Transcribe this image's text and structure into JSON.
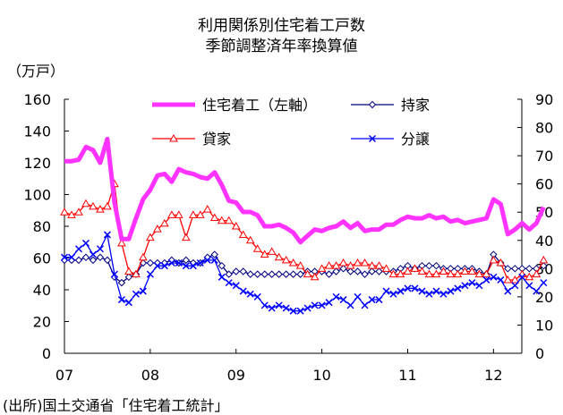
{
  "chart_data": {
    "type": "line",
    "title": "利用関係別住宅着工戸数",
    "subtitle": "季節調整済年率換算値",
    "unit_label": "（万戸）",
    "source": "(出所)国土交通省「住宅着工統計」",
    "x_tick_labels": [
      "07",
      "08",
      "09",
      "10",
      "11",
      "12"
    ],
    "x_range": [
      2007.0,
      2012.33
    ],
    "left_axis": {
      "ylim": [
        0,
        160
      ],
      "ticks": [
        "0",
        "20",
        "40",
        "60",
        "80",
        "100",
        "120",
        "140",
        "160"
      ]
    },
    "right_axis": {
      "ylim": [
        0,
        90
      ],
      "ticks": [
        "0",
        "10",
        "20",
        "30",
        "40",
        "50",
        "60",
        "70",
        "80",
        "90"
      ]
    },
    "grid": false,
    "legend": "top, inside plot, two columns",
    "x_start": 2007.0,
    "x_step_months": 1,
    "series": [
      {
        "name": "住宅着工（左軸）",
        "axis": "left",
        "color": "#ff33ff",
        "marker": "none",
        "values": [
          121,
          121,
          122,
          130,
          128,
          120,
          135,
          95,
          72,
          72,
          85,
          97,
          103,
          112,
          113,
          108,
          116,
          114,
          113,
          111,
          110,
          114,
          106,
          96,
          95,
          89,
          89,
          87,
          80,
          80,
          81,
          79,
          76,
          70,
          74,
          78,
          77,
          79,
          80,
          83,
          79,
          82,
          77,
          78,
          78,
          81,
          81,
          84,
          86,
          85,
          85,
          87,
          85,
          86,
          83,
          84,
          82,
          83,
          84,
          85,
          97,
          94,
          75,
          78,
          82,
          78,
          82,
          92
        ]
      },
      {
        "name": "持家",
        "axis": "right",
        "color": "#000080",
        "marker": "diamond",
        "values": [
          33,
          33,
          33,
          34,
          33,
          34,
          33,
          27,
          25,
          27,
          28,
          32,
          32,
          32,
          32,
          33,
          32,
          33,
          32,
          32,
          34,
          35,
          31,
          28,
          29,
          29,
          28,
          28,
          28,
          28,
          28,
          28,
          28,
          28,
          29,
          29,
          29,
          28,
          29,
          30,
          29,
          29,
          28,
          29,
          29,
          29,
          29,
          30,
          31,
          30,
          31,
          31,
          31,
          30,
          30,
          30,
          30,
          30,
          29,
          28,
          35,
          32,
          30,
          30,
          30,
          30,
          30,
          31
        ]
      },
      {
        "name": "貸家",
        "axis": "right",
        "color": "#ff0000",
        "marker": "triangle",
        "values": [
          50,
          49,
          50,
          53,
          52,
          51,
          52,
          60,
          39,
          29,
          28,
          34,
          41,
          44,
          46,
          49,
          49,
          41,
          49,
          49,
          51,
          48,
          47,
          47,
          45,
          42,
          40,
          37,
          35,
          36,
          34,
          33,
          32,
          31,
          28,
          27,
          30,
          31,
          31,
          32,
          31,
          32,
          32,
          31,
          31,
          30,
          28,
          28,
          29,
          30,
          29,
          28,
          28,
          29,
          28,
          28,
          29,
          29,
          28,
          28,
          33,
          32,
          26,
          26,
          28,
          27,
          28,
          33
        ]
      },
      {
        "name": "分譲",
        "axis": "right",
        "color": "#0000ff",
        "marker": "cross",
        "values": [
          34,
          34,
          37,
          39,
          35,
          37,
          42,
          28,
          19,
          18,
          21,
          22,
          28,
          31,
          31,
          32,
          32,
          31,
          31,
          32,
          33,
          33,
          27,
          25,
          24,
          22,
          21,
          20,
          17,
          16,
          17,
          16,
          15,
          15,
          16,
          17,
          17,
          18,
          20,
          19,
          17,
          20,
          17,
          19,
          19,
          22,
          21,
          22,
          23,
          23,
          22,
          21,
          22,
          21,
          22,
          23,
          24,
          25,
          24,
          26,
          27,
          26,
          22,
          24,
          27,
          24,
          22,
          25
        ]
      }
    ]
  }
}
